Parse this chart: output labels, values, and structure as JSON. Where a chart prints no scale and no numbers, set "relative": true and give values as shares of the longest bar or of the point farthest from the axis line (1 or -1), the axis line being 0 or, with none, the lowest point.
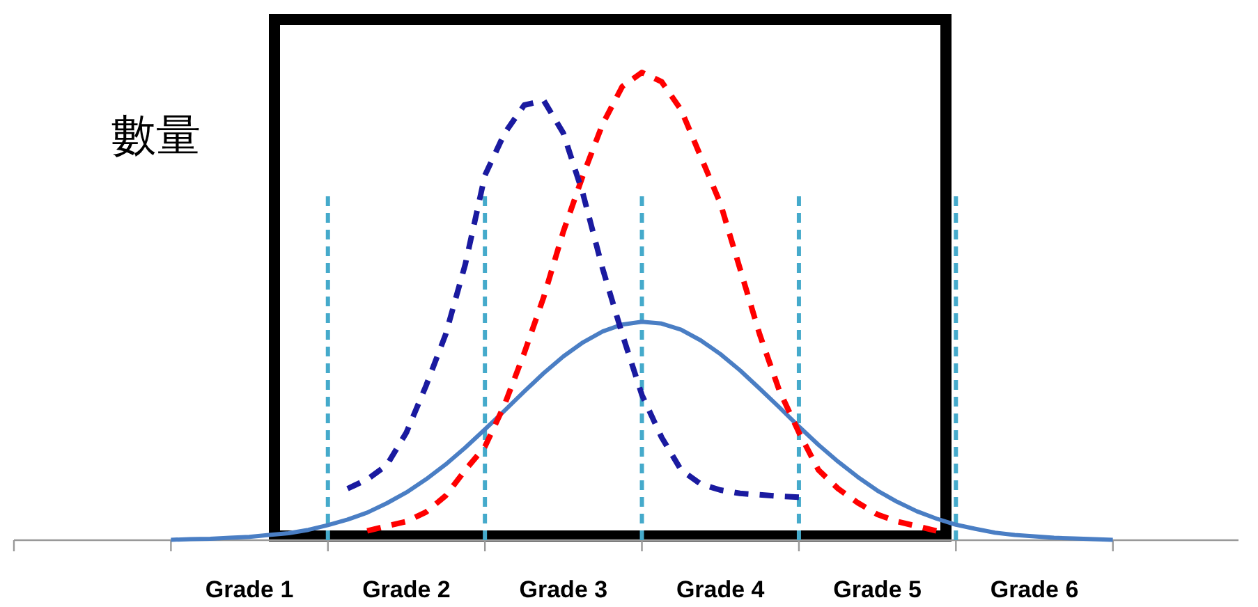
{
  "chart_data": {
    "type": "line",
    "ylabel": "數量",
    "relative": true,
    "categories": [
      null,
      null,
      null,
      null,
      "Grade 1",
      null,
      null,
      null,
      null,
      null,
      null,
      null,
      "Grade 2",
      null,
      null,
      null,
      null,
      null,
      null,
      null,
      "Grade 3",
      null,
      null,
      null,
      null,
      null,
      null,
      null,
      "Grade 4",
      null,
      null,
      null,
      null,
      null,
      null,
      null,
      "Grade 5",
      null,
      null,
      null,
      null,
      null,
      null,
      null,
      "Grade 6",
      null,
      null,
      null,
      null
    ],
    "series": [
      {
        "color": "#4a7ec4",
        "line_style": "solid",
        "values": [
          0.001,
          0.002,
          0.003,
          0.005,
          0.007,
          0.011,
          0.015,
          0.022,
          0.032,
          0.044,
          0.059,
          0.079,
          0.102,
          0.13,
          0.162,
          0.198,
          0.237,
          0.277,
          0.318,
          0.357,
          0.393,
          0.423,
          0.446,
          0.461,
          0.467,
          0.463,
          0.45,
          0.427,
          0.398,
          0.363,
          0.324,
          0.284,
          0.243,
          0.204,
          0.168,
          0.135,
          0.106,
          0.082,
          0.062,
          0.046,
          0.033,
          0.024,
          0.016,
          0.011,
          0.008,
          0.005,
          0.004,
          0.002,
          0.001
        ]
      },
      {
        "color": "#ff0000",
        "line_style": "dashed",
        "values": [
          null,
          null,
          null,
          null,
          null,
          null,
          null,
          null,
          null,
          null,
          0.02,
          0.03,
          0.04,
          0.06,
          0.095,
          0.15,
          0.2,
          0.29,
          0.4,
          0.52,
          0.66,
          0.78,
          0.89,
          0.97,
          1.0,
          0.98,
          0.92,
          0.82,
          0.72,
          0.58,
          0.44,
          0.32,
          0.23,
          0.15,
          0.11,
          0.08,
          0.055,
          0.04,
          0.03,
          0.02,
          null,
          null,
          null,
          null,
          null,
          null,
          null,
          null,
          null
        ]
      },
      {
        "color": "#1a1aa0",
        "line_style": "dashed",
        "values": [
          null,
          null,
          null,
          null,
          null,
          null,
          null,
          null,
          null,
          0.11,
          0.13,
          0.16,
          0.23,
          0.33,
          0.44,
          0.59,
          0.78,
          0.87,
          0.93,
          0.94,
          0.87,
          0.74,
          0.58,
          0.44,
          0.31,
          0.22,
          0.15,
          0.12,
          0.107,
          0.1,
          0.097,
          0.094,
          0.092,
          null,
          null,
          null,
          null,
          null,
          null,
          null,
          null,
          null,
          null,
          null,
          null,
          null,
          null,
          null,
          null
        ]
      }
    ],
    "grid": "x"
  }
}
